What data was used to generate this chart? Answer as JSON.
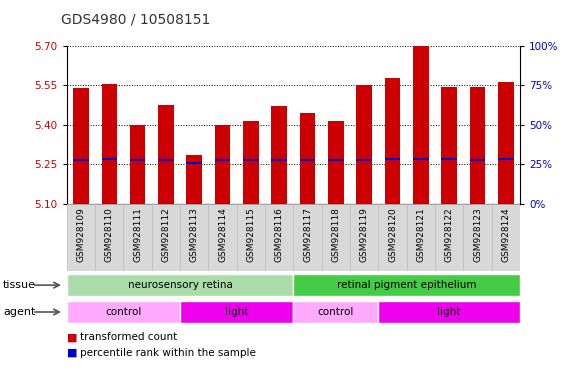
{
  "title": "GDS4980 / 10508151",
  "samples": [
    "GSM928109",
    "GSM928110",
    "GSM928111",
    "GSM928112",
    "GSM928113",
    "GSM928114",
    "GSM928115",
    "GSM928116",
    "GSM928117",
    "GSM928118",
    "GSM928119",
    "GSM928120",
    "GSM928121",
    "GSM928122",
    "GSM928123",
    "GSM928124"
  ],
  "bar_values": [
    5.54,
    5.555,
    5.4,
    5.475,
    5.285,
    5.4,
    5.415,
    5.47,
    5.445,
    5.415,
    5.55,
    5.58,
    5.7,
    5.545,
    5.545,
    5.565
  ],
  "percentile_values": [
    5.265,
    5.27,
    5.265,
    5.265,
    5.255,
    5.265,
    5.265,
    5.265,
    5.265,
    5.265,
    5.265,
    5.27,
    5.27,
    5.27,
    5.265,
    5.27
  ],
  "ylim_left": [
    5.1,
    5.7
  ],
  "yticks_left": [
    5.1,
    5.25,
    5.4,
    5.55,
    5.7
  ],
  "ylim_right": [
    0,
    100
  ],
  "yticks_right": [
    0,
    25,
    50,
    75,
    100
  ],
  "bar_color": "#cc0000",
  "percentile_color": "#0000cc",
  "bar_bottom": 5.1,
  "tissue_groups": [
    {
      "label": "neurosensory retina",
      "start": 0,
      "end": 8,
      "color": "#aaddaa"
    },
    {
      "label": "retinal pigment epithelium",
      "start": 8,
      "end": 16,
      "color": "#44cc44"
    }
  ],
  "agent_groups": [
    {
      "label": "control",
      "start": 0,
      "end": 4,
      "color": "#ffaaff"
    },
    {
      "label": "light",
      "start": 4,
      "end": 8,
      "color": "#ee00ee"
    },
    {
      "label": "control",
      "start": 8,
      "end": 11,
      "color": "#ffaaff"
    },
    {
      "label": "light",
      "start": 11,
      "end": 16,
      "color": "#ee00ee"
    }
  ],
  "legend_items": [
    {
      "label": "transformed count",
      "color": "#cc0000"
    },
    {
      "label": "percentile rank within the sample",
      "color": "#0000cc"
    }
  ],
  "left_label_color": "#cc0000",
  "right_label_color": "#0000cc",
  "grid_color": "#000000",
  "background_color": "#ffffff",
  "title_fontsize": 10,
  "tick_fontsize": 7.5,
  "sample_fontsize": 6.5,
  "row_label_fontsize": 8,
  "row_text_fontsize": 7.5
}
